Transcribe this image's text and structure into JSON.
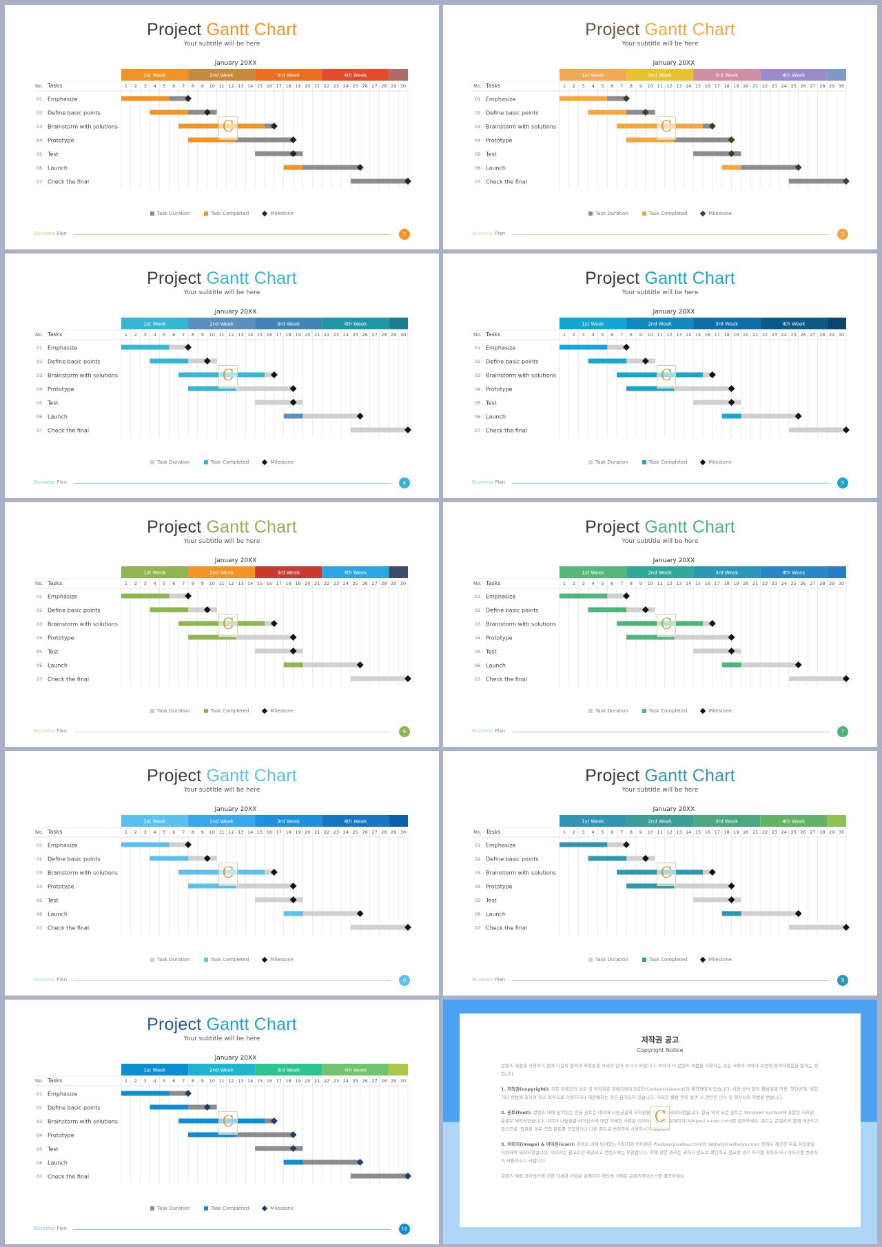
{
  "common": {
    "title_word": "Project",
    "title_accent": "Gantt Chart",
    "subtitle": "Your subtitle will be here",
    "month": "January 20XX",
    "no_header": "No.",
    "tasks_header": "Tasks",
    "legend_duration": "Task Duration",
    "legend_completed": "Task Completed",
    "legend_milestone": "Milestone",
    "footer_a": "Business",
    "footer_b": "Plan",
    "watermark": "C"
  },
  "chart_data": {
    "type": "gantt",
    "x_label": "January 20XX",
    "days": [
      1,
      2,
      3,
      4,
      5,
      6,
      7,
      8,
      9,
      10,
      11,
      12,
      13,
      14,
      15,
      16,
      17,
      18,
      19,
      20,
      21,
      22,
      23,
      24,
      25,
      26,
      27,
      28,
      29,
      30
    ],
    "weeks": [
      "1st Week",
      "2nd Week",
      "3rd Week",
      "4th Week"
    ],
    "tasks": [
      {
        "no": "01",
        "name": "Emphasize",
        "start": 1,
        "completed_end": 5,
        "duration_end": 7,
        "milestone": 7
      },
      {
        "no": "02",
        "name": "Define basic points",
        "start": 4,
        "completed_end": 7,
        "duration_end": 10,
        "milestone": 9
      },
      {
        "no": "03",
        "name": "Brainstorm with solutions",
        "start": 7,
        "completed_end": 15,
        "duration_end": 16,
        "milestone": 16
      },
      {
        "no": "04",
        "name": "Prototype",
        "start": 8,
        "completed_end": 12,
        "duration_end": 18,
        "milestone": 18
      },
      {
        "no": "05",
        "name": "Test",
        "start": 15,
        "completed_end": 15,
        "duration_end": 19,
        "milestone": 18
      },
      {
        "no": "06",
        "name": "Launch",
        "start": 18,
        "completed_end": 19,
        "duration_end": 25,
        "milestone": 25
      },
      {
        "no": "07",
        "name": "Check the final",
        "start": 25,
        "completed_end": 25,
        "duration_end": 30,
        "milestone": 30
      }
    ]
  },
  "slides": [
    {
      "page": "2",
      "accent": "#f39324",
      "completed": "#f39324",
      "duration": "#8c8c8c",
      "milestone": "#222222",
      "footer": "#e7c87d",
      "weeks": [
        "#f39324",
        "#c98a3e",
        "#ec6f1e",
        "#e44a2a",
        "#b36a66"
      ],
      "title_color": "#f39324"
    },
    {
      "page": "3",
      "accent": "#f7a53e",
      "completed": "#f7a53e",
      "duration": "#8c8c8c",
      "milestone": "#3e3e1e",
      "footer": "#f0d39a",
      "weeks": [
        "#f4a854",
        "#e8c12e",
        "#d28ea0",
        "#9c8ccf",
        "#7b9ac4"
      ],
      "title_color": "#f7a53e",
      "title_word_color": "#6b5a3b"
    },
    {
      "page": "4",
      "accent": "#36b6d6",
      "completed": "#36b6d6",
      "duration": "#d0d0d0",
      "milestone": "#111111",
      "footer": "#7ccde3",
      "weeks": [
        "#36b6d6",
        "#5a8fc0",
        "#3f86b7",
        "#1f97a7",
        "#1a7f8e"
      ],
      "title_color": "#36b6d6"
    },
    {
      "page": "5",
      "accent": "#17a7cc",
      "completed": "#17a7cc",
      "duration": "#d0d0d0",
      "milestone": "#111111",
      "footer": "#7ccde3",
      "weeks": [
        "#12a7d2",
        "#0f8ac0",
        "#0c6ea7",
        "#0a5a8a",
        "#084570"
      ],
      "title_color": "#17a7cc"
    },
    {
      "page": "6",
      "accent": "#8fb550",
      "completed": "#8fb550",
      "duration": "#d0d0d0",
      "milestone": "#111111",
      "footer": "#cfd9a8",
      "weeks": [
        "#8fb550",
        "#f39324",
        "#c63a2f",
        "#2aa7e0",
        "#3d4c66"
      ],
      "title_color": "#8fb550"
    },
    {
      "page": "7",
      "accent": "#4cb57a",
      "completed": "#4cb57a",
      "duration": "#d0d0d0",
      "milestone": "#111111",
      "footer": "#9ed6b2",
      "weeks": [
        "#55b87a",
        "#2fa89a",
        "#2a97b8",
        "#2a87c3",
        "#247ec4"
      ],
      "title_color": "#4cb57a"
    },
    {
      "page": "8",
      "accent": "#5cc0ee",
      "completed": "#5cc0ee",
      "duration": "#d0d0d0",
      "milestone": "#111111",
      "footer": "#a4dbf2",
      "weeks": [
        "#5cc0ee",
        "#3aa7eb",
        "#1f8fe0",
        "#1a74c4",
        "#105ea9"
      ],
      "title_color": "#5cc0ee"
    },
    {
      "page": "9",
      "accent": "#2e97b3",
      "completed": "#2e97b3",
      "duration": "#d0d0d0",
      "milestone": "#111111",
      "footer": "#9cc8d8",
      "weeks": [
        "#3393b3",
        "#3e9c9a",
        "#4ea67e",
        "#64b265",
        "#8cc251"
      ],
      "title_color": "#2e97b3"
    },
    {
      "page": "10",
      "accent": "#0e8ed0",
      "completed": "#0e8ed0",
      "duration": "#8c8c8c",
      "milestone": "#1e3d66",
      "footer": "#7cc3e8",
      "weeks": [
        "#0e8ed0",
        "#1fb5cc",
        "#2fc48f",
        "#71c46d",
        "#a9c74a"
      ],
      "title_color": "#1aa6d0",
      "title_word_color": "#1f5a8e"
    }
  ],
  "copyright": {
    "title": "저작권 공고",
    "subtitle": "Copyright Notice",
    "intro": "콘텐츠 제품을 사용하기 전에 다음의 협의과 조항들을 자세히 읽어 주시기 바랍니다. 귀하가 이 콘텐츠 제품을 사용하는 것은 사용자 계약과 보증에 동의하였음을 말하는 것입니다.",
    "p1_head": "1. 저작권(copyright):",
    "p1": "모든 콘텐츠의 소유 및 저작권은 콘텐츠에이크로라(Contentstakeout)과 제작자에게 있습니다. 사전 승낙 없이 불법복제 이용, 무단전재, 배포 기타 방법에 의하여 영리 목적으로 이용하거나 재판매하는 것은 금지되어 있습니다. 이러한 불법 행위 발견 시 관련된 민사 및 형사상의 처벌을 받습니다.",
    "p2_head": "2. 폰트(font):",
    "p2": "콘텐츠 내에 담겨있는 한글 폰트는 네이버 나눔글꼴의 저작권을 이용하여 제작되었습니다. 한글 외의 모든 폰트는 Windows System에 포함된 저작권 글꼴로 제작되었습니다. 네이버 나눔글꼴 라이선스에 대한 자세한 사항은 네이버 나눔글꼴 홈페이지(hangeul.naver.com)를 참조하세요. 폰트는 콘텐츠와 함께 제공되지 않으므로, 필요할 경우 직접 폰트를 구입하거나 다른 폰트로 변경하여 사용하시기 바랍니다.",
    "p3_head": "3. 이미지(image) & 아이콘(icon):",
    "p3": "콘텐츠 내에 담겨있는 이미지와 아이콘은 Pixabay(pixabay.com)와 Webalys(webalys.com) 등에서 제공한 무료 저작물을 이용하여 제작되었습니다. 이미지는 참고로만 제공되고 콘텐츠에는 무관합니다. 이에 관한 권리는 귀하가 별도로 확인하고 필요할 경우 허가를 취득하거나 이미지를 변경하여 사용하시기 바랍니다.",
    "outro": "콘텐츠 제품 라이선스에 대한 자세한 사항은 홈페이지 하단에 기재된 콘텐츠라이선스를 참조하세요."
  }
}
